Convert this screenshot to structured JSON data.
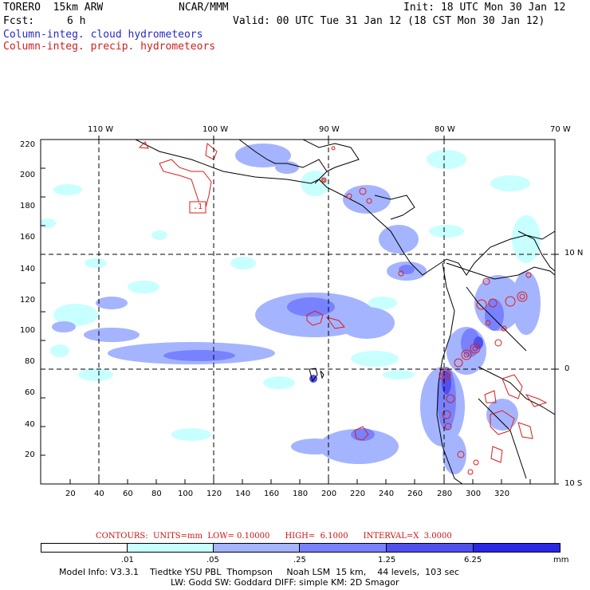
{
  "header": {
    "model": "TORERO  15km ARW",
    "center": "NCAR/MMM",
    "init": "Init: 18 UTC Mon 30 Jan 12",
    "fcst_label": "Fcst:",
    "fcst_value": "6 h",
    "valid": "Valid: 00 UTC Tue 31 Jan 12 (18 CST Mon 30 Jan 12)",
    "line_cloud": "Column-integ. cloud hydrometeors",
    "line_precip": "Column-integ. precip. hydrometeors"
  },
  "map": {
    "lon_labels": [
      "110 W",
      "100 W",
      "90 W",
      "80 W",
      "70 W"
    ],
    "lat_labels": [
      "10 N",
      "0",
      "10 S"
    ],
    "x_ticks": [
      "20",
      "40",
      "60",
      "80",
      "100",
      "120",
      "140",
      "160",
      "180",
      "200",
      "220",
      "240",
      "260",
      "280",
      "300",
      "320"
    ],
    "y_ticks": [
      "220",
      "200",
      "180",
      "160",
      "140",
      "120",
      "100",
      "80",
      "60",
      "40",
      "20"
    ],
    "contour_box_label": ".1"
  },
  "contours": {
    "units": "CONTOURS:  UNITS=mm  LOW= 0.10000      HIGH=  6.1000      INTERVAL=X  3.0000"
  },
  "legend": {
    "labels": [
      ".01",
      ".05",
      ".25",
      "1.25",
      "6.25"
    ],
    "unit": "mm",
    "colors": [
      "#ffffff",
      "#c8ffff",
      "#a5b4ff",
      "#7882ff",
      "#5050f0",
      "#2828e6"
    ]
  },
  "info": {
    "line1": "Model Info: V3.3.1    Tiedtke YSU PBL  Thompson     Noah LSM  15 km,    44 levels,  103 sec",
    "line2": "LW: Godd SW: Goddard DIFF: simple KM: 2D Smagor"
  }
}
